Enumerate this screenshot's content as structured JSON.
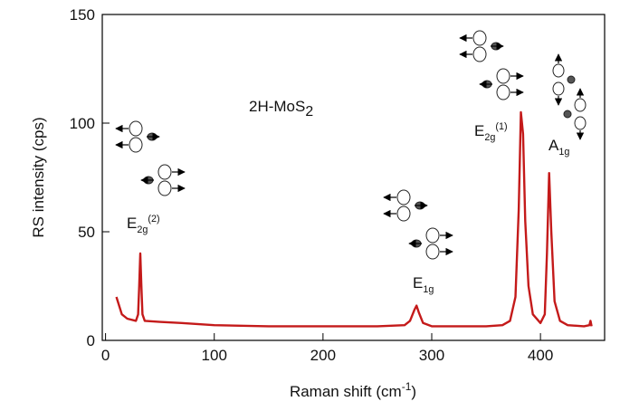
{
  "chart_data": {
    "type": "line",
    "x_label": {
      "text": "Raman shift (cm",
      "sup": "-1",
      "tail": ")"
    },
    "y_label": "RS intensity (cps)",
    "annotations": [
      {
        "base": "2H-MoS",
        "sub": "2"
      },
      {
        "base": "E",
        "sub": "2g",
        "sup": "(2)"
      },
      {
        "base": "E",
        "sub": "1g"
      },
      {
        "base": "E",
        "sub": "2g",
        "sup": "(1)"
      },
      {
        "base": "A",
        "sub": "1g"
      }
    ],
    "xlim": [
      -3,
      459
    ],
    "ylim": [
      0,
      150
    ],
    "xticks": [
      0,
      100,
      200,
      300,
      400
    ],
    "yticks": [
      0,
      50,
      100,
      150
    ],
    "series": [
      {
        "color": "#c41a1a",
        "x": [
          10,
          15,
          20,
          28,
          30,
          31,
          32,
          33,
          34,
          36,
          50,
          70,
          100,
          150,
          200,
          250,
          275,
          280,
          284,
          286,
          288,
          292,
          300,
          350,
          365,
          372,
          377,
          380,
          382,
          384,
          386,
          389,
          393,
          400,
          404,
          406,
          408,
          410,
          413,
          418,
          425,
          440,
          445,
          446,
          447
        ],
        "values": [
          20,
          12,
          10,
          9,
          12,
          25,
          40,
          25,
          12,
          9,
          8.5,
          8,
          7,
          6.5,
          6.5,
          6.5,
          7,
          9,
          14,
          16,
          13,
          8,
          6.5,
          6.5,
          7,
          9,
          20,
          60,
          105,
          95,
          55,
          25,
          12,
          8,
          12,
          40,
          77,
          50,
          18,
          9,
          7,
          6.5,
          7,
          9,
          6.5
        ]
      }
    ]
  }
}
